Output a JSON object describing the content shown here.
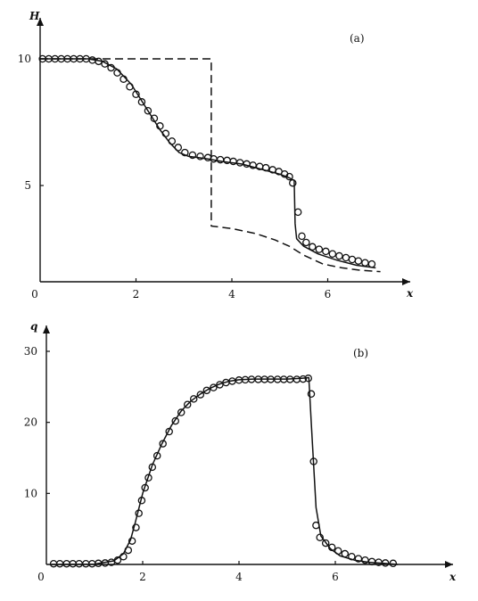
{
  "chart_data": [
    {
      "type": "line",
      "panel_label": "(a)",
      "xlabel": "x",
      "ylabel": "H",
      "xlim": [
        0,
        7.4
      ],
      "ylim": [
        1,
        11
      ],
      "x_ticks": [
        0,
        2,
        4,
        6
      ],
      "y_ticks": [
        5,
        10
      ],
      "x_tick_labels": [
        "0",
        "2",
        "4",
        "6"
      ],
      "y_tick_labels": [
        "5",
        "10"
      ],
      "grid": false,
      "series": [
        {
          "style": "solid",
          "x": [
            0,
            1.0,
            1.3,
            1.6,
            1.9,
            2.1,
            2.3,
            2.5,
            2.7,
            2.9,
            3.1,
            3.3,
            3.5,
            3.8,
            4.2,
            4.6,
            5.0,
            5.2,
            5.3,
            5.32,
            5.35,
            5.5,
            5.8,
            6.2,
            6.6,
            7.0
          ],
          "y": [
            10.0,
            10.0,
            9.9,
            9.6,
            9.0,
            8.4,
            7.8,
            7.2,
            6.7,
            6.3,
            6.15,
            6.1,
            6.05,
            5.95,
            5.85,
            5.65,
            5.45,
            5.3,
            5.2,
            3.5,
            2.9,
            2.6,
            2.3,
            2.05,
            1.85,
            1.75
          ]
        },
        {
          "style": "dashed",
          "x": [
            0,
            3.57,
            3.57,
            4.0,
            4.5,
            4.9,
            5.2,
            5.5,
            5.9,
            6.3,
            6.7,
            7.1
          ],
          "y": [
            10.0,
            10.0,
            3.4,
            3.3,
            3.1,
            2.85,
            2.6,
            2.25,
            1.9,
            1.75,
            1.65,
            1.6
          ]
        },
        {
          "style": "markers",
          "x": [
            0.05,
            0.18,
            0.31,
            0.44,
            0.57,
            0.7,
            0.83,
            0.96,
            1.09,
            1.22,
            1.35,
            1.48,
            1.61,
            1.74,
            1.87,
            2.0,
            2.12,
            2.25,
            2.38,
            2.5,
            2.62,
            2.75,
            2.88,
            3.02,
            3.18,
            3.34,
            3.5,
            3.62,
            3.76,
            3.9,
            4.03,
            4.17,
            4.31,
            4.44,
            4.58,
            4.71,
            4.85,
            4.98,
            5.1,
            5.2,
            5.27,
            5.38,
            5.46,
            5.55,
            5.68,
            5.82,
            5.96,
            6.1,
            6.24,
            6.38,
            6.51,
            6.64,
            6.78,
            6.92
          ],
          "y": [
            10.0,
            10.0,
            10.0,
            10.0,
            10.0,
            10.0,
            10.0,
            10.0,
            9.95,
            9.9,
            9.8,
            9.65,
            9.45,
            9.2,
            8.9,
            8.6,
            8.3,
            7.95,
            7.65,
            7.35,
            7.05,
            6.75,
            6.5,
            6.3,
            6.2,
            6.15,
            6.1,
            6.05,
            6.02,
            5.99,
            5.95,
            5.9,
            5.85,
            5.8,
            5.75,
            5.7,
            5.62,
            5.55,
            5.45,
            5.35,
            5.1,
            3.95,
            3.0,
            2.75,
            2.58,
            2.48,
            2.4,
            2.3,
            2.22,
            2.15,
            2.08,
            2.02,
            1.95,
            1.9
          ]
        }
      ]
    },
    {
      "type": "line",
      "panel_label": "(b)",
      "xlabel": "x",
      "ylabel": "q",
      "xlim": [
        0,
        8.4
      ],
      "ylim": [
        0,
        32
      ],
      "x_ticks": [
        0,
        2,
        4,
        6
      ],
      "y_ticks": [
        10,
        20,
        30
      ],
      "x_tick_labels": [
        "0",
        "2",
        "4",
        "6"
      ],
      "y_tick_labels": [
        "10",
        "20",
        "30"
      ],
      "grid": false,
      "series": [
        {
          "style": "solid",
          "x": [
            0.1,
            1.0,
            1.4,
            1.6,
            1.75,
            1.85,
            2.0,
            2.2,
            2.4,
            2.6,
            2.8,
            3.0,
            3.2,
            3.4,
            3.6,
            3.8,
            4.0,
            4.3,
            4.6,
            5.0,
            5.3,
            5.45,
            5.5,
            5.6,
            5.7,
            5.9,
            6.1,
            6.4,
            6.7,
            7.0,
            7.3
          ],
          "y": [
            0.0,
            0.05,
            0.5,
            1.5,
            3.5,
            6.0,
            10.0,
            14.0,
            17.0,
            19.6,
            21.6,
            23.0,
            24.0,
            24.8,
            25.4,
            25.8,
            26.0,
            26.1,
            26.1,
            26.1,
            26.2,
            26.3,
            20.0,
            8.0,
            4.0,
            2.2,
            1.2,
            0.6,
            0.3,
            0.15,
            0.0
          ]
        },
        {
          "style": "markers",
          "x": [
            0.15,
            0.28,
            0.42,
            0.55,
            0.68,
            0.82,
            0.95,
            1.08,
            1.22,
            1.35,
            1.48,
            1.6,
            1.7,
            1.78,
            1.86,
            1.92,
            1.98,
            2.05,
            2.12,
            2.2,
            2.3,
            2.42,
            2.55,
            2.68,
            2.8,
            2.93,
            3.06,
            3.2,
            3.33,
            3.47,
            3.6,
            3.73,
            3.86,
            4.0,
            4.13,
            4.26,
            4.4,
            4.53,
            4.66,
            4.8,
            4.93,
            5.06,
            5.2,
            5.33,
            5.44,
            5.5,
            5.55,
            5.6,
            5.68,
            5.8,
            5.93,
            6.06,
            6.2,
            6.34,
            6.48,
            6.62,
            6.76,
            6.9,
            7.04,
            7.2
          ],
          "y": [
            0.1,
            0.1,
            0.1,
            0.1,
            0.1,
            0.1,
            0.1,
            0.15,
            0.2,
            0.3,
            0.6,
            1.1,
            2.0,
            3.3,
            5.2,
            7.2,
            9.0,
            10.8,
            12.2,
            13.7,
            15.3,
            17.0,
            18.7,
            20.2,
            21.4,
            22.5,
            23.3,
            23.9,
            24.5,
            24.9,
            25.3,
            25.6,
            25.8,
            25.95,
            26.0,
            26.05,
            26.05,
            26.05,
            26.05,
            26.05,
            26.05,
            26.05,
            26.05,
            26.1,
            26.2,
            24.0,
            14.5,
            5.5,
            3.8,
            3.0,
            2.4,
            1.9,
            1.5,
            1.1,
            0.8,
            0.6,
            0.4,
            0.3,
            0.2,
            0.15
          ]
        }
      ]
    }
  ]
}
